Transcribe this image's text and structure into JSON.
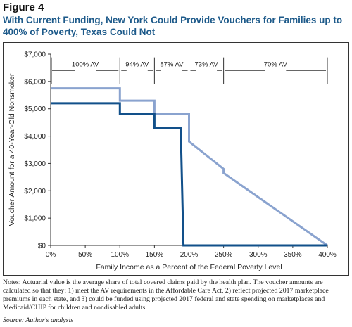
{
  "figure": {
    "label": "Figure 4",
    "title": "With Current Funding, New York Could Provide Vouchers for Families up to 400% of Poverty, Texas Could Not"
  },
  "notes": "Notes: Actuarial value is the average share of total covered claims paid by the health plan. The voucher amounts are calculated so that they: 1) meet the AV requirements in the Affordable Care Act, 2) reflect projected 2017 marketplace premiums in each state, and 3) could be funded using projected 2017 federal and state spending on marketplaces and Medicaid/CHIP for children and  nondisabled adults.",
  "source": "Source: Author's analysis",
  "colors": {
    "new_york": "#8aa3cf",
    "texas": "#12508a",
    "title": "#1d5a8a"
  },
  "chart_data": {
    "type": "line",
    "title": "",
    "xlabel": "Family Income as a Percent of the Federal Poverty Level",
    "ylabel": "Voucher Amount for a 40-Year-Old Nonsmoker",
    "xlim": [
      0,
      400
    ],
    "ylim": [
      0,
      7000
    ],
    "x_ticks": [
      0,
      50,
      100,
      150,
      200,
      250,
      300,
      350,
      400
    ],
    "x_tick_labels": [
      "0%",
      "50%",
      "100%",
      "150%",
      "200%",
      "250%",
      "300%",
      "350%",
      "400%"
    ],
    "y_ticks": [
      0,
      1000,
      2000,
      3000,
      4000,
      5000,
      6000,
      7000
    ],
    "y_tick_labels": [
      "$0",
      "$1,000",
      "$2,000",
      "$3,000",
      "$4,000",
      "$5,000",
      "$6,000",
      "$7,000"
    ],
    "grid": false,
    "av_bands": [
      {
        "label": "100% AV",
        "from": 0,
        "to": 100
      },
      {
        "label": "94% AV",
        "from": 100,
        "to": 150
      },
      {
        "label": "87% AV",
        "from": 150,
        "to": 200
      },
      {
        "label": "73% AV",
        "from": 200,
        "to": 250
      },
      {
        "label": "70% AV",
        "from": 250,
        "to": 400
      }
    ],
    "series": [
      {
        "id": "new_york",
        "points": [
          [
            0,
            5750
          ],
          [
            100,
            5750
          ],
          [
            100,
            5300
          ],
          [
            150,
            5300
          ],
          [
            150,
            4800
          ],
          [
            200,
            4800
          ],
          [
            200,
            3800
          ],
          [
            250,
            2800
          ],
          [
            250,
            2650
          ],
          [
            400,
            0
          ]
        ]
      },
      {
        "id": "texas",
        "points": [
          [
            0,
            5200
          ],
          [
            100,
            5200
          ],
          [
            100,
            4800
          ],
          [
            150,
            4800
          ],
          [
            150,
            4300
          ],
          [
            188,
            4300
          ],
          [
            192,
            0
          ],
          [
            400,
            0
          ]
        ]
      }
    ]
  }
}
